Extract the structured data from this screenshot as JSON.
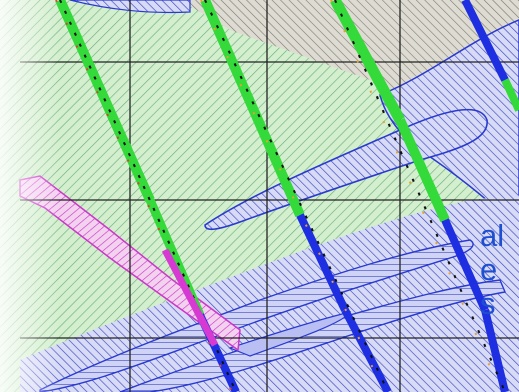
{
  "caption": {
    "line1": "al",
    "line2": "e",
    "line3": "s"
  },
  "colors": {
    "zone_green": "#c8ecc2",
    "hatch_green": "#7fb98c",
    "zone_blue": "#c9cdf3",
    "hatch_blue": "#3a46c2",
    "zone_magenta": "#f0c6ee",
    "hatch_magenta": "#cc37c8",
    "drillhole_green": "#35e03a",
    "drillhole_blue": "#1d2fe0",
    "grid": "#222222",
    "caption_text": "#1f4fd1"
  }
}
